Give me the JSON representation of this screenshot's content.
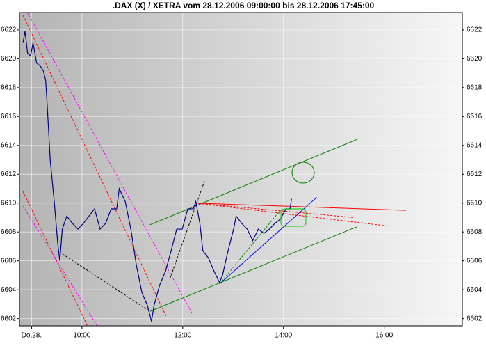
{
  "chart_data": {
    "type": "line",
    "title": ".DAX (X) / XETRA vom 28.12.2006 09:00:00 bis 28.12.2006 17:45:00",
    "x": [
      8.83,
      8.87,
      8.92,
      8.98,
      9.03,
      9.1,
      9.17,
      9.23,
      9.28,
      9.31,
      9.37,
      9.45,
      9.52,
      9.56,
      9.61,
      9.7,
      9.81,
      9.92,
      10.03,
      10.14,
      10.25,
      10.36,
      10.47,
      10.58,
      10.69,
      10.74,
      10.86,
      10.97,
      11.08,
      11.19,
      11.3,
      11.38,
      11.43,
      11.54,
      11.66,
      11.77,
      11.88,
      11.99,
      12.1,
      12.21,
      12.26,
      12.34,
      12.4,
      12.51,
      12.62,
      12.73,
      12.79,
      12.9,
      13.01,
      13.06,
      13.17,
      13.28,
      13.39,
      13.5,
      13.61,
      13.72,
      13.83,
      13.94,
      14.05,
      14.13,
      14.16
    ],
    "values": [
      6621.1,
      6621.9,
      6620.4,
      6620.2,
      6621.1,
      6619.7,
      6619.5,
      6619.2,
      6618.5,
      6616.8,
      6613.0,
      6610.1,
      6607.2,
      6606.0,
      6608.2,
      6609.1,
      6608.6,
      6608.2,
      6608.6,
      6609.1,
      6609.6,
      6608.2,
      6608.6,
      6609.6,
      6609.6,
      6611.0,
      6610.1,
      6608.2,
      6605.7,
      6603.8,
      6602.9,
      6601.8,
      6602.9,
      6604.3,
      6605.3,
      6606.7,
      6608.2,
      6608.2,
      6609.6,
      6609.6,
      6610.1,
      6608.6,
      6606.7,
      6606.2,
      6605.3,
      6604.5,
      6605.0,
      6606.7,
      6608.2,
      6609.1,
      6608.6,
      6608.2,
      6607.4,
      6608.2,
      6607.9,
      6608.2,
      6608.6,
      6608.9,
      6609.6,
      6609.6,
      6610.3
    ],
    "color": "#000080",
    "xlim": [
      8.76,
      17.55
    ],
    "ylim": [
      6601.5,
      6623.2
    ],
    "xticks": [
      {
        "value": 9,
        "label": "Do,28."
      },
      {
        "value": 10,
        "label": "10:00"
      },
      {
        "value": 12,
        "label": "12:00"
      },
      {
        "value": 14,
        "label": "14:00"
      },
      {
        "value": 16,
        "label": "16:00"
      }
    ],
    "yticks": [
      6602,
      6604,
      6606,
      6608,
      6610,
      6612,
      6614,
      6616,
      6618,
      6620,
      6622
    ],
    "grid": true,
    "trendlines": [
      {
        "color": "#008000",
        "dash": false,
        "x": [
          11.35,
          15.45
        ],
        "y": [
          6608.5,
          6614.4
        ]
      },
      {
        "color": "#008000",
        "dash": false,
        "x": [
          11.35,
          15.45
        ],
        "y": [
          6602.5,
          6608.35
        ]
      },
      {
        "color": "#0000ff",
        "dash": false,
        "x": [
          12.73,
          14.66
        ],
        "y": [
          6604.4,
          6610.4
        ]
      },
      {
        "color": "#ff0000",
        "dash": false,
        "x": [
          12.25,
          16.43
        ],
        "y": [
          6610.0,
          6609.5
        ]
      },
      {
        "color": "#ff0000",
        "dash": true,
        "x": [
          12.25,
          16.1
        ],
        "y": [
          6610.0,
          6608.4
        ]
      },
      {
        "color": "#ff0000",
        "dash": true,
        "x": [
          12.25,
          15.4
        ],
        "y": [
          6610.0,
          6609.0
        ]
      },
      {
        "color": "#ff0000",
        "dash": true,
        "x": [
          8.83,
          11.68
        ],
        "y": [
          6623.0,
          6602.1
        ]
      },
      {
        "color": "#ff00ff",
        "dash": true,
        "x": [
          8.92,
          12.18
        ],
        "y": [
          6623.2,
          6602.4
        ]
      },
      {
        "color": "#ff0000",
        "dash": true,
        "x": [
          8.83,
          10.11
        ],
        "y": [
          6610.8,
          6601.5
        ]
      },
      {
        "color": "#ff00ff",
        "dash": true,
        "x": [
          8.83,
          10.3
        ],
        "y": [
          6609.8,
          6601.5
        ]
      },
      {
        "color": "#000000",
        "dash": true,
        "x": [
          9.56,
          11.35
        ],
        "y": [
          6606.6,
          6602.5
        ]
      },
      {
        "color": "#000000",
        "dash": true,
        "x": [
          11.75,
          12.44
        ],
        "y": [
          6604.8,
          6611.6
        ]
      },
      {
        "color": "#008000",
        "dash": true,
        "x": [
          12.73,
          13.96
        ],
        "y": [
          6604.4,
          6609.6
        ]
      }
    ]
  }
}
